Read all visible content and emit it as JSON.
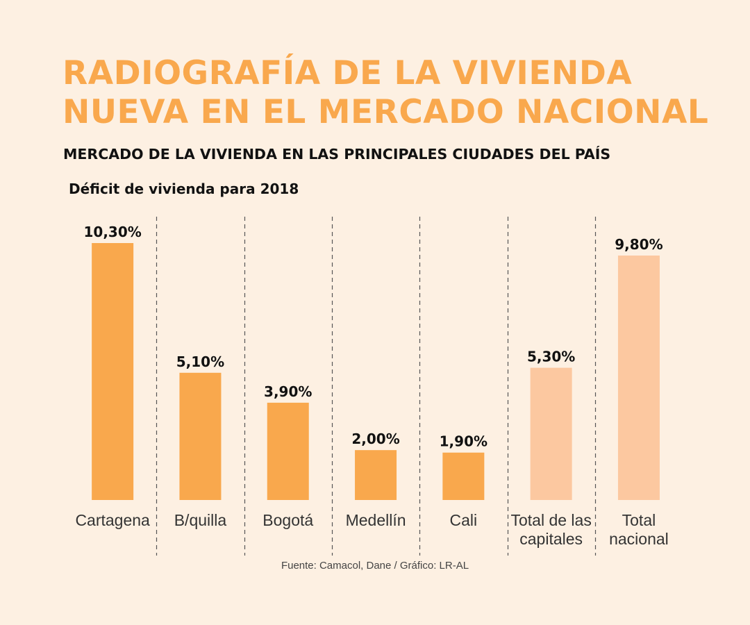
{
  "title_lines": [
    "RADIOGRAFÍA DE LA VIVIENDA",
    "NUEVA EN EL MERCADO NACIONAL"
  ],
  "subtitle": "MERCADO DE LA VIVIENDA EN LAS PRINCIPALES CIUDADES DEL PAÍS",
  "source": "Fuente: Camacol, Dane / Gráfico: LR-AL",
  "colors": {
    "background": "#fdf0e2",
    "title": "#f9a84d",
    "bar_city": "#f9a84d",
    "bar_total": "#fcc8a0",
    "divider": "#555555"
  },
  "chart_data": {
    "type": "bar",
    "title": "Déficit de vivienda para 2018",
    "categories": [
      [
        "Cartagena"
      ],
      [
        "B/quilla"
      ],
      [
        "Bogotá"
      ],
      [
        "Medellín"
      ],
      [
        "Cali"
      ],
      [
        "Total de las",
        "capitales"
      ],
      [
        "Total",
        "nacional"
      ]
    ],
    "values": [
      10.3,
      5.1,
      3.9,
      2.0,
      1.9,
      5.3,
      9.8
    ],
    "value_labels": [
      "10,30%",
      "5,10%",
      "3,90%",
      "2,00%",
      "1,90%",
      "5,30%",
      "9,80%"
    ],
    "highlight": [
      false,
      false,
      false,
      false,
      false,
      true,
      true
    ],
    "ylim": [
      0,
      10.3
    ],
    "grid": false,
    "dividers": "dashed vertical lines between categories"
  }
}
